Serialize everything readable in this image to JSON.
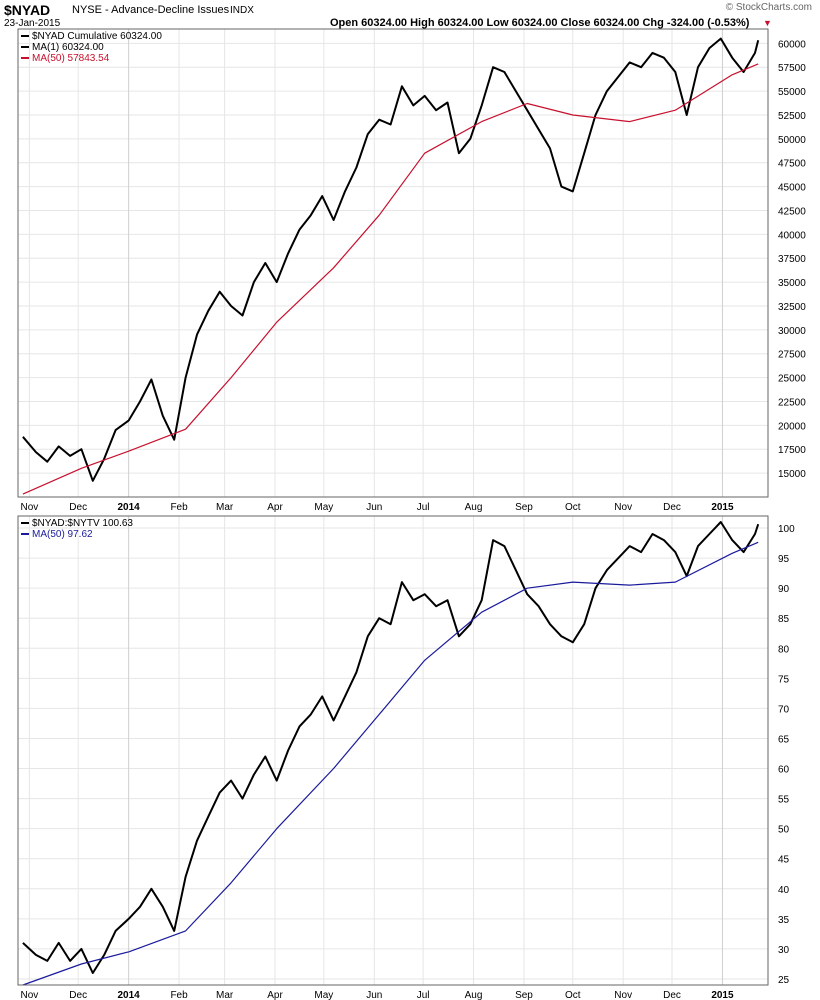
{
  "header": {
    "symbol": "$NYAD",
    "description": "NYSE - Advance-Decline Issues",
    "exchange": "INDX",
    "date": "23-Jan-2015",
    "ohlc": "Open 60324.00  High 60324.00  Low 60324.00  Close 60324.00  Chg -324.00 (-0.53%)",
    "watermark": "© StockCharts.com"
  },
  "colors": {
    "price_line": "#000000",
    "ma_top": "#c8102e",
    "ma_bottom": "#1a1a9c",
    "grid": "#e6e6e6",
    "border": "#666666",
    "down_arrow": "#c8102e"
  },
  "chart_data": [
    {
      "type": "line",
      "legend_position": "top-left",
      "legend": [
        "$NYAD Cumulative 60324.00",
        "MA(1) 60324.00",
        "MA(50) 57843.54"
      ],
      "x_labels": [
        "Nov",
        "Dec",
        "2014",
        "Feb",
        "Mar",
        "Apr",
        "May",
        "Jun",
        "Jul",
        "Aug",
        "Sep",
        "Oct",
        "Nov",
        "Dec",
        "2015"
      ],
      "y_ticks": [
        15000,
        17500,
        20000,
        22500,
        25000,
        27500,
        30000,
        32500,
        35000,
        37500,
        40000,
        42500,
        45000,
        47500,
        50000,
        52500,
        55000,
        57500,
        60000
      ],
      "ylim": [
        12500,
        61500
      ],
      "grid": true,
      "series": [
        {
          "name": "$NYAD Cumulative",
          "x": [
            "2013-10-28",
            "2013-11-05",
            "2013-11-12",
            "2013-11-19",
            "2013-11-26",
            "2013-12-03",
            "2013-12-10",
            "2013-12-17",
            "2013-12-24",
            "2014-01-01",
            "2014-01-08",
            "2014-01-15",
            "2014-01-22",
            "2014-01-29",
            "2014-02-05",
            "2014-02-12",
            "2014-02-19",
            "2014-02-26",
            "2014-03-05",
            "2014-03-12",
            "2014-03-19",
            "2014-03-26",
            "2014-04-02",
            "2014-04-09",
            "2014-04-16",
            "2014-04-23",
            "2014-04-30",
            "2014-05-07",
            "2014-05-14",
            "2014-05-21",
            "2014-05-28",
            "2014-06-04",
            "2014-06-11",
            "2014-06-18",
            "2014-06-25",
            "2014-07-02",
            "2014-07-09",
            "2014-07-16",
            "2014-07-23",
            "2014-07-30",
            "2014-08-06",
            "2014-08-13",
            "2014-08-20",
            "2014-08-27",
            "2014-09-03",
            "2014-09-10",
            "2014-09-17",
            "2014-09-24",
            "2014-10-01",
            "2014-10-08",
            "2014-10-15",
            "2014-10-22",
            "2014-10-29",
            "2014-11-05",
            "2014-11-12",
            "2014-11-19",
            "2014-11-26",
            "2014-12-03",
            "2014-12-10",
            "2014-12-17",
            "2014-12-24",
            "2014-12-31",
            "2015-01-07",
            "2015-01-14",
            "2015-01-21",
            "2015-01-23"
          ],
          "values": [
            18800,
            17200,
            16200,
            17800,
            16800,
            17500,
            14200,
            16500,
            19500,
            20500,
            22500,
            24800,
            21000,
            18500,
            25000,
            29500,
            32000,
            34000,
            32500,
            31500,
            35000,
            37000,
            35000,
            38000,
            40500,
            42000,
            44000,
            41500,
            44500,
            47000,
            50500,
            52000,
            51500,
            55500,
            53500,
            54500,
            53000,
            53800,
            48500,
            50000,
            53500,
            57500,
            57000,
            55000,
            53000,
            51000,
            49000,
            45000,
            44500,
            48500,
            52500,
            55000,
            56500,
            58000,
            57500,
            59000,
            58500,
            57000,
            52500,
            57500,
            59500,
            60500,
            58500,
            57000,
            59000,
            60324
          ]
        },
        {
          "name": "MA(50)",
          "x": [
            "2013-10-28",
            "2013-12-03",
            "2014-01-01",
            "2014-02-05",
            "2014-03-05",
            "2014-04-02",
            "2014-05-07",
            "2014-06-04",
            "2014-07-02",
            "2014-08-06",
            "2014-09-03",
            "2014-10-01",
            "2014-11-05",
            "2014-12-03",
            "2015-01-07",
            "2015-01-23"
          ],
          "values": [
            12800,
            15500,
            17300,
            19600,
            25000,
            30800,
            36500,
            42000,
            48500,
            51800,
            53700,
            52500,
            51800,
            53000,
            56700,
            57843.54
          ]
        }
      ]
    },
    {
      "type": "line",
      "legend_position": "top-left",
      "legend": [
        "$NYAD:$NYTV 100.63",
        "MA(50) 97.62"
      ],
      "x_labels": [
        "Nov",
        "Dec",
        "2014",
        "Feb",
        "Mar",
        "Apr",
        "May",
        "Jun",
        "Jul",
        "Aug",
        "Sep",
        "Oct",
        "Nov",
        "Dec",
        "2015"
      ],
      "y_ticks": [
        25,
        30,
        35,
        40,
        45,
        50,
        55,
        60,
        65,
        70,
        75,
        80,
        85,
        90,
        95,
        100
      ],
      "ylim": [
        24,
        102
      ],
      "grid": true,
      "series": [
        {
          "name": "$NYAD:$NYTV",
          "x": [
            "2013-10-28",
            "2013-11-05",
            "2013-11-12",
            "2013-11-19",
            "2013-11-26",
            "2013-12-03",
            "2013-12-10",
            "2013-12-17",
            "2013-12-24",
            "2014-01-01",
            "2014-01-08",
            "2014-01-15",
            "2014-01-22",
            "2014-01-29",
            "2014-02-05",
            "2014-02-12",
            "2014-02-19",
            "2014-02-26",
            "2014-03-05",
            "2014-03-12",
            "2014-03-19",
            "2014-03-26",
            "2014-04-02",
            "2014-04-09",
            "2014-04-16",
            "2014-04-23",
            "2014-04-30",
            "2014-05-07",
            "2014-05-14",
            "2014-05-21",
            "2014-05-28",
            "2014-06-04",
            "2014-06-11",
            "2014-06-18",
            "2014-06-25",
            "2014-07-02",
            "2014-07-09",
            "2014-07-16",
            "2014-07-23",
            "2014-07-30",
            "2014-08-06",
            "2014-08-13",
            "2014-08-20",
            "2014-08-27",
            "2014-09-03",
            "2014-09-10",
            "2014-09-17",
            "2014-09-24",
            "2014-10-01",
            "2014-10-08",
            "2014-10-15",
            "2014-10-22",
            "2014-10-29",
            "2014-11-05",
            "2014-11-12",
            "2014-11-19",
            "2014-11-26",
            "2014-12-03",
            "2014-12-10",
            "2014-12-17",
            "2014-12-24",
            "2014-12-31",
            "2015-01-07",
            "2015-01-14",
            "2015-01-21",
            "2015-01-23"
          ],
          "values": [
            31,
            29,
            28,
            31,
            28,
            30,
            26,
            29,
            33,
            35,
            37,
            40,
            37,
            33,
            42,
            48,
            52,
            56,
            58,
            55,
            59,
            62,
            58,
            63,
            67,
            69,
            72,
            68,
            72,
            76,
            82,
            85,
            84,
            91,
            88,
            89,
            87,
            88,
            82,
            84,
            88,
            98,
            97,
            93,
            89,
            87,
            84,
            82,
            81,
            84,
            90,
            93,
            95,
            97,
            96,
            99,
            98,
            96,
            92,
            97,
            99,
            101,
            98,
            96,
            99,
            100.63
          ]
        },
        {
          "name": "MA(50)",
          "x": [
            "2013-10-28",
            "2013-12-03",
            "2014-01-01",
            "2014-02-05",
            "2014-03-05",
            "2014-04-02",
            "2014-05-07",
            "2014-06-04",
            "2014-07-02",
            "2014-08-06",
            "2014-09-03",
            "2014-10-01",
            "2014-11-05",
            "2014-12-03",
            "2015-01-07",
            "2015-01-23"
          ],
          "values": [
            24,
            27.5,
            29.5,
            33,
            41,
            50,
            60,
            69,
            78,
            86,
            90,
            91,
            90.5,
            91,
            95.8,
            97.62
          ]
        }
      ]
    }
  ]
}
